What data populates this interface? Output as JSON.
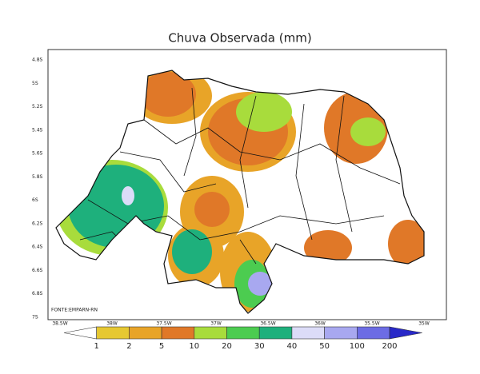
{
  "title": "Chuva Observada (mm)",
  "y_labels": [
    "4.8S",
    "5S",
    "5.2S",
    "5.4S",
    "5.6S",
    "5.8S",
    "6S",
    "6.2S",
    "6.4S",
    "6.6S",
    "6.8S",
    "7S"
  ],
  "x_labels": [
    "38.5W",
    "38W",
    "37.5W",
    "37W",
    "36.5W",
    "36W",
    "35.5W",
    "35W"
  ],
  "source": "FONTE:EMPARN-RN",
  "colorbar": {
    "labels": [
      1,
      2,
      5,
      10,
      20,
      30,
      40,
      50,
      100,
      200
    ],
    "colors": [
      "#ffffff",
      "#e6c832",
      "#e8a428",
      "#e07828",
      "#a8dc3c",
      "#4ccc50",
      "#1eb07c",
      "#dcdcf8",
      "#a8a8f0",
      "#6c6ce4",
      "#2828c8"
    ]
  }
}
